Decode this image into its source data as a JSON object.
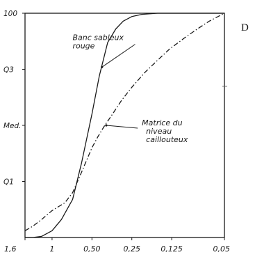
{
  "panel_letter": "D",
  "chart_data": {
    "type": "line",
    "title": "",
    "xlabel": "",
    "ylabel": "",
    "x_scale": "log-reversed",
    "x_ticks": [
      "1,6",
      "1",
      "0,50",
      "0,25",
      "0,125",
      "0,05"
    ],
    "x_tick_values": [
      1.6,
      1,
      0.5,
      0.25,
      0.125,
      0.05
    ],
    "y_ticks": [
      "100",
      "Q3",
      "Med.",
      "Q1"
    ],
    "y_tick_values": [
      100,
      75,
      50,
      25
    ],
    "xlim": [
      1.6,
      0.05
    ],
    "ylim": [
      0,
      100
    ],
    "grid": false,
    "annotations": [
      {
        "text": [
          "Banc sableux",
          "rouge"
        ],
        "x": 0.7,
        "y": 88,
        "arrow_to": {
          "x": 0.42,
          "y": 76
        }
      },
      {
        "text": [
          "Matrice du",
          "niveau",
          "caillouteux"
        ],
        "x": 0.21,
        "y": 50,
        "arrow_to": {
          "x": 0.39,
          "y": 50
        }
      }
    ],
    "series": [
      {
        "style": "solid",
        "x": [
          1.6,
          1.4,
          1.2,
          1.0,
          0.85,
          0.7,
          0.6,
          0.5,
          0.44,
          0.38,
          0.33,
          0.29,
          0.25,
          0.21,
          0.16,
          0.12,
          0.09,
          0.07,
          0.05
        ],
        "y": [
          0,
          0,
          0.5,
          3,
          8,
          17,
          33,
          55,
          72,
          87,
          93,
          96.5,
          98.5,
          99.5,
          100,
          100,
          100,
          100,
          100
        ]
      },
      {
        "style": "dash-dot",
        "x": [
          1.6,
          1.4,
          1.2,
          1.0,
          0.8,
          0.7,
          0.6,
          0.5,
          0.45,
          0.4,
          0.35,
          0.3,
          0.25,
          0.2,
          0.16,
          0.13,
          0.1,
          0.08,
          0.065,
          0.05
        ],
        "y": [
          3,
          5,
          8,
          12,
          15.5,
          20,
          29,
          40,
          45,
          50,
          55,
          61,
          67,
          73.5,
          79,
          84,
          89,
          93,
          96.5,
          100
        ]
      }
    ]
  }
}
